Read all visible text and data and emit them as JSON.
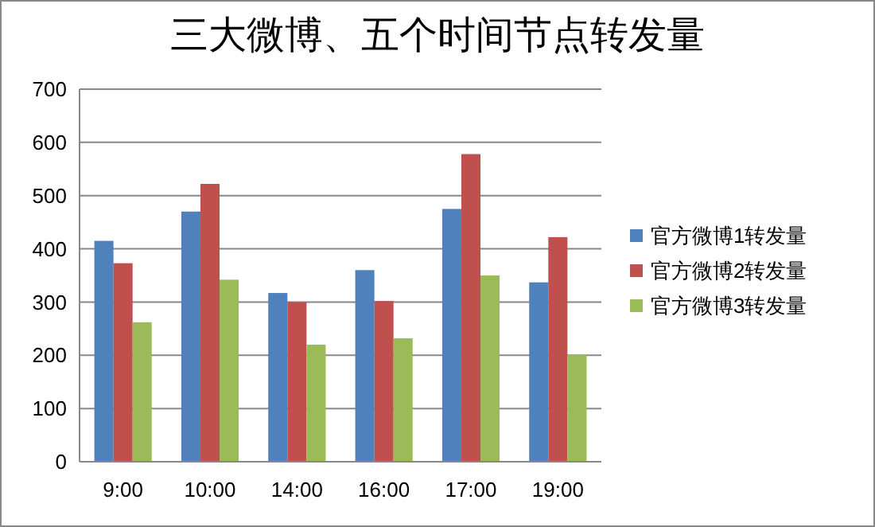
{
  "chart_data": {
    "type": "bar",
    "title": "三大微博、五个时间节点转发量",
    "categories": [
      "9:00",
      "10:00",
      "14:00",
      "16:00",
      "17:00",
      "19:00"
    ],
    "series": [
      {
        "name": "官方微博1转发量",
        "color": "#4f81bd",
        "values": [
          415,
          470,
          317,
          360,
          475,
          337
        ]
      },
      {
        "name": "官方微博2转发量",
        "color": "#c0504d",
        "values": [
          373,
          522,
          300,
          302,
          578,
          422
        ]
      },
      {
        "name": "官方微博3转发量",
        "color": "#9bbb59",
        "values": [
          262,
          342,
          220,
          232,
          350,
          202
        ]
      }
    ],
    "ylim": [
      0,
      700
    ],
    "yticks": [
      0,
      100,
      200,
      300,
      400,
      500,
      600,
      700
    ],
    "grid": "y",
    "legend": "right"
  }
}
